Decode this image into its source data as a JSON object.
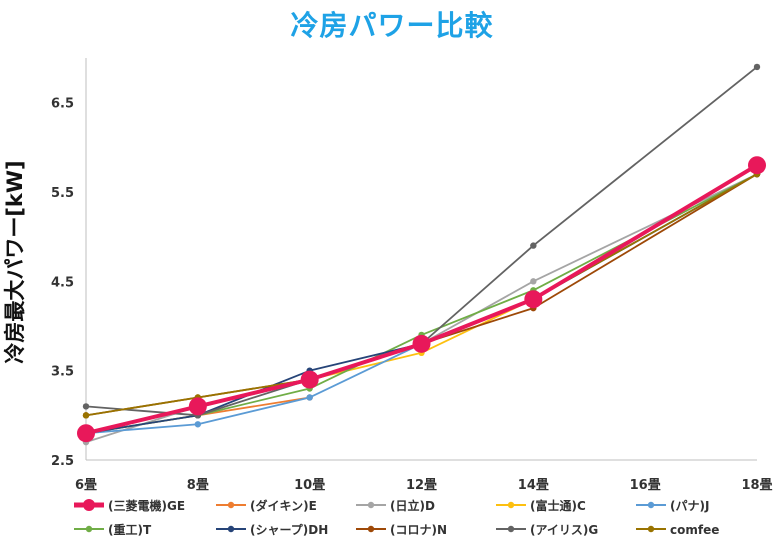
{
  "chart_data": {
    "type": "line",
    "title": "冷房パワー比較",
    "ylabel": "冷房最大パワー[kW]",
    "xlabel": "",
    "categories": [
      "6畳",
      "8畳",
      "10畳",
      "12畳",
      "14畳",
      "16畳",
      "18畳"
    ],
    "yticks": [
      "2.5",
      "3.5",
      "4.5",
      "5.5",
      "6.5"
    ],
    "ylim": [
      2.5,
      7.0
    ],
    "grid": false,
    "legend_position": "bottom",
    "series": [
      {
        "name": "(三菱電機)GE",
        "color": "#e8185a",
        "highlight": true,
        "values": [
          2.8,
          3.1,
          3.4,
          3.8,
          4.3,
          null,
          5.8
        ]
      },
      {
        "name": "(ダイキン)E",
        "color": "#ee7d31",
        "values": [
          2.8,
          3.0,
          3.2,
          null,
          null,
          null,
          null
        ]
      },
      {
        "name": "(日立)D",
        "color": "#a5a5a5",
        "values": [
          2.7,
          3.1,
          3.4,
          3.8,
          4.5,
          null,
          5.7
        ]
      },
      {
        "name": "(富士通)C",
        "color": "#fdc010",
        "values": [
          2.8,
          3.1,
          3.4,
          3.7,
          4.3,
          null,
          5.8
        ]
      },
      {
        "name": "(パナ)J",
        "color": "#5b9bd5",
        "values": [
          2.8,
          2.9,
          3.2,
          3.8,
          4.3,
          null,
          5.7
        ]
      },
      {
        "name": "(重工)T",
        "color": "#70ad46",
        "values": [
          2.8,
          3.0,
          3.3,
          3.9,
          4.4,
          null,
          5.7
        ]
      },
      {
        "name": "(シャープ)DH",
        "color": "#264478",
        "values": [
          2.8,
          3.0,
          3.5,
          3.8,
          4.3,
          null,
          5.7
        ]
      },
      {
        "name": "(コロナ)N",
        "color": "#9e4908",
        "values": [
          3.0,
          3.2,
          3.4,
          3.8,
          4.2,
          null,
          5.7
        ]
      },
      {
        "name": "(アイリス)G",
        "color": "#636363",
        "values": [
          3.1,
          3.0,
          3.4,
          3.8,
          4.9,
          null,
          6.9
        ]
      },
      {
        "name": "comfee",
        "color": "#997300",
        "values": [
          3.0,
          3.2,
          3.4,
          3.8,
          4.3,
          null,
          5.7
        ]
      }
    ]
  }
}
